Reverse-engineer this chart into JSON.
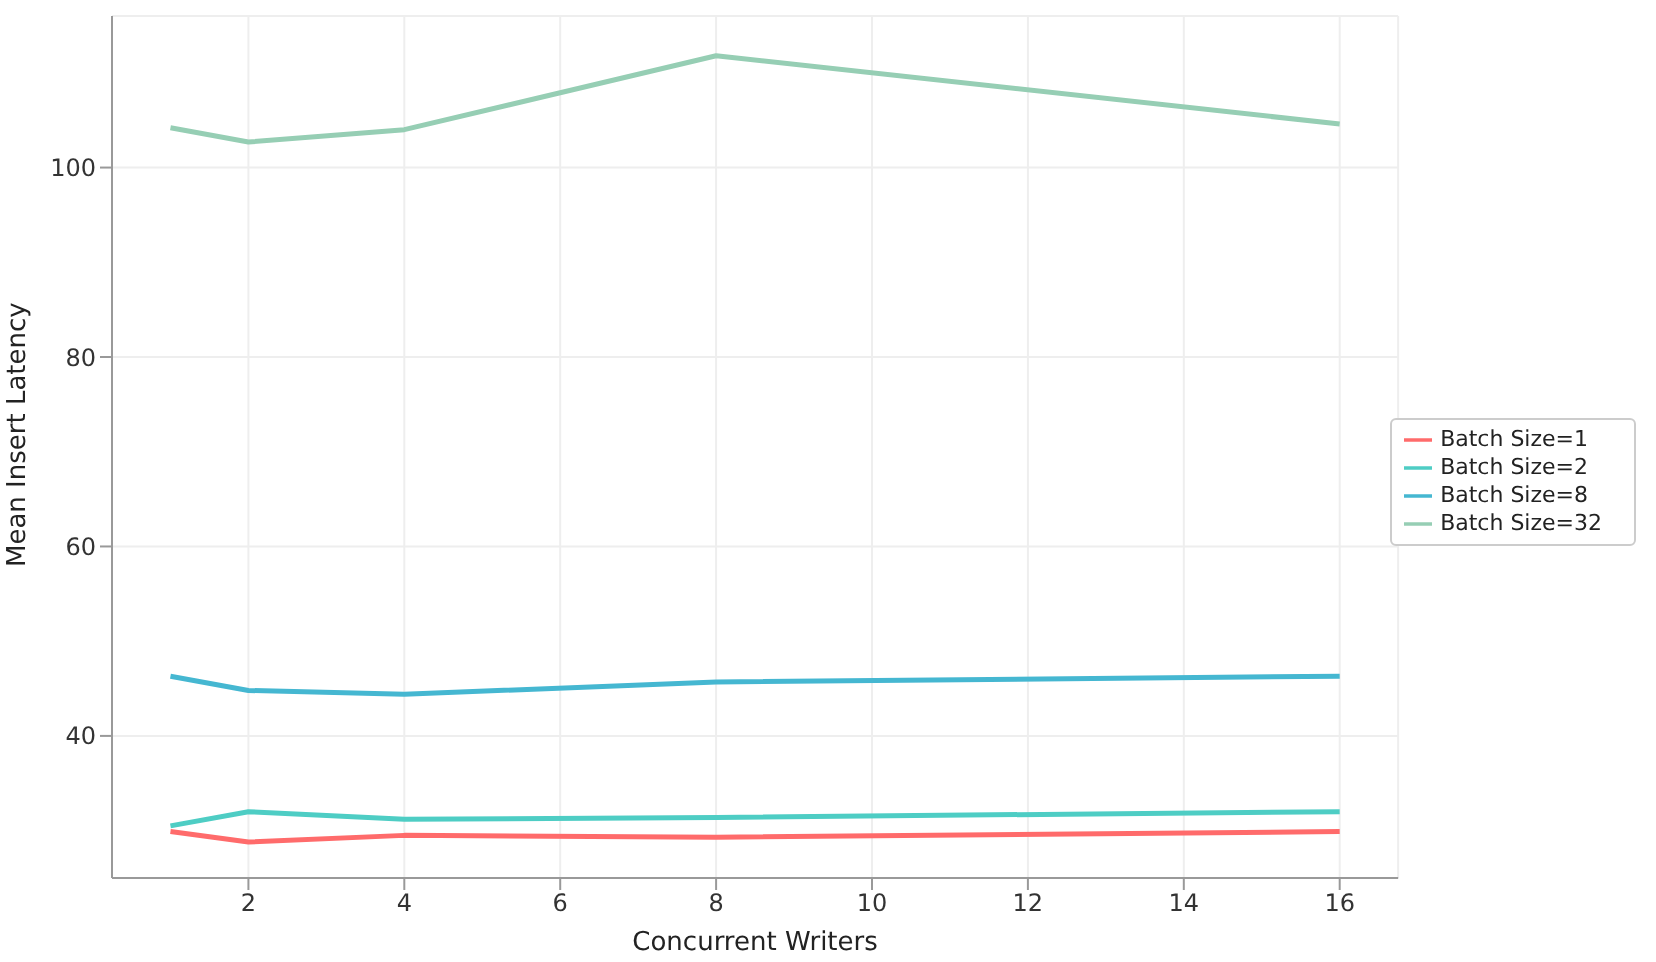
{
  "chart_data": {
    "type": "line",
    "xlabel": "Concurrent Writers",
    "ylabel": "Mean Insert Latency",
    "x": [
      1,
      2,
      4,
      8,
      16
    ],
    "series": [
      {
        "name": "Batch Size=1",
        "color": "#ff6b6b",
        "values": [
          29.9,
          28.8,
          29.5,
          29.3,
          29.9
        ]
      },
      {
        "name": "Batch Size=2",
        "color": "#4ecdc4",
        "values": [
          30.5,
          32.0,
          31.2,
          31.4,
          32.0
        ]
      },
      {
        "name": "Batch Size=8",
        "color": "#45b7d1",
        "values": [
          46.3,
          44.8,
          44.4,
          45.7,
          46.3
        ]
      },
      {
        "name": "Batch Size=32",
        "color": "#96ceb4",
        "values": [
          104.2,
          102.7,
          104.0,
          111.8,
          104.6
        ]
      }
    ],
    "xlim": [
      0.25,
      16.75
    ],
    "xticks": [
      2,
      4,
      6,
      8,
      10,
      12,
      14,
      16
    ],
    "ylim": [
      25,
      116
    ],
    "yticks": [
      40,
      60,
      80,
      100
    ],
    "grid": true,
    "legend": "right",
    "marker": "none",
    "line_style": "solid"
  }
}
